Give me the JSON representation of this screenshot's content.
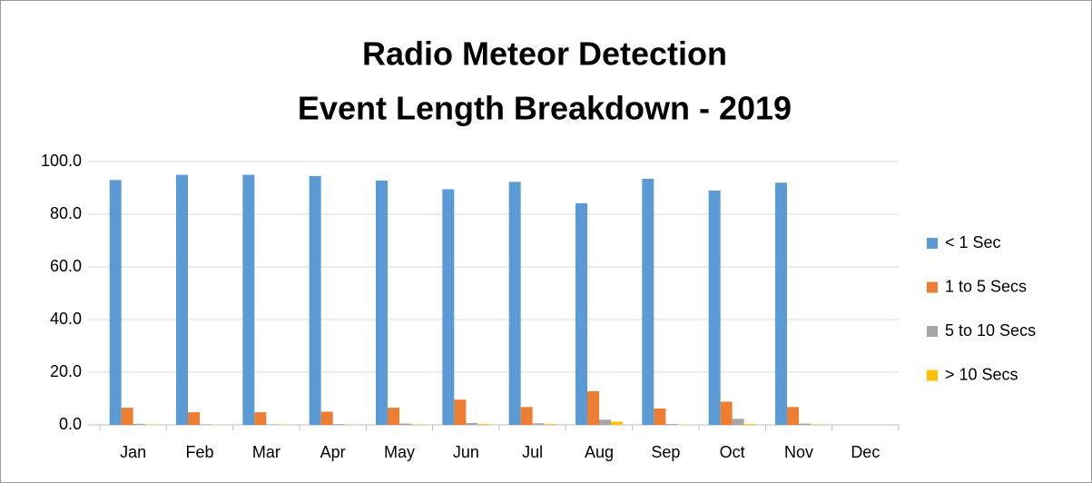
{
  "chart_data": {
    "type": "bar",
    "title": "Radio Meteor Detection",
    "subtitle": "Event Length Breakdown - 2019",
    "categories": [
      "Jan",
      "Feb",
      "Mar",
      "Apr",
      "May",
      "Jun",
      "Jul",
      "Aug",
      "Sep",
      "Oct",
      "Nov",
      "Dec"
    ],
    "series": [
      {
        "name": "< 1 Sec",
        "color": "#5b9bd5",
        "values": [
          93,
          95,
          95,
          94.5,
          92.8,
          89.5,
          92.3,
          84.2,
          93.5,
          89,
          92,
          null
        ]
      },
      {
        "name": "1 to 5 Secs",
        "color": "#ed7d31",
        "values": [
          6.5,
          4.8,
          4.8,
          5.0,
          6.5,
          9.6,
          6.8,
          12.8,
          6.2,
          8.8,
          6.8,
          null
        ]
      },
      {
        "name": "5 to 10 Secs",
        "color": "#a5a5a5",
        "values": [
          0.4,
          0.2,
          0.2,
          0.3,
          0.5,
          0.7,
          0.6,
          2.0,
          0.3,
          2.3,
          0.5,
          null
        ]
      },
      {
        "name": "> 10 Secs",
        "color": "#ffc000",
        "values": [
          0.1,
          0.1,
          0.1,
          0.1,
          0.2,
          0.3,
          0.3,
          1.2,
          0.1,
          0.3,
          0.2,
          null
        ]
      }
    ],
    "ylim": [
      0,
      100
    ],
    "yticks": [
      {
        "value": 0,
        "label": "0.0"
      },
      {
        "value": 20,
        "label": "20.0"
      },
      {
        "value": 40,
        "label": "40.0"
      },
      {
        "value": 60,
        "label": "60.0"
      },
      {
        "value": 80,
        "label": "80.0"
      },
      {
        "value": 100,
        "label": "100.0"
      }
    ],
    "grid": true,
    "legend": "right"
  }
}
